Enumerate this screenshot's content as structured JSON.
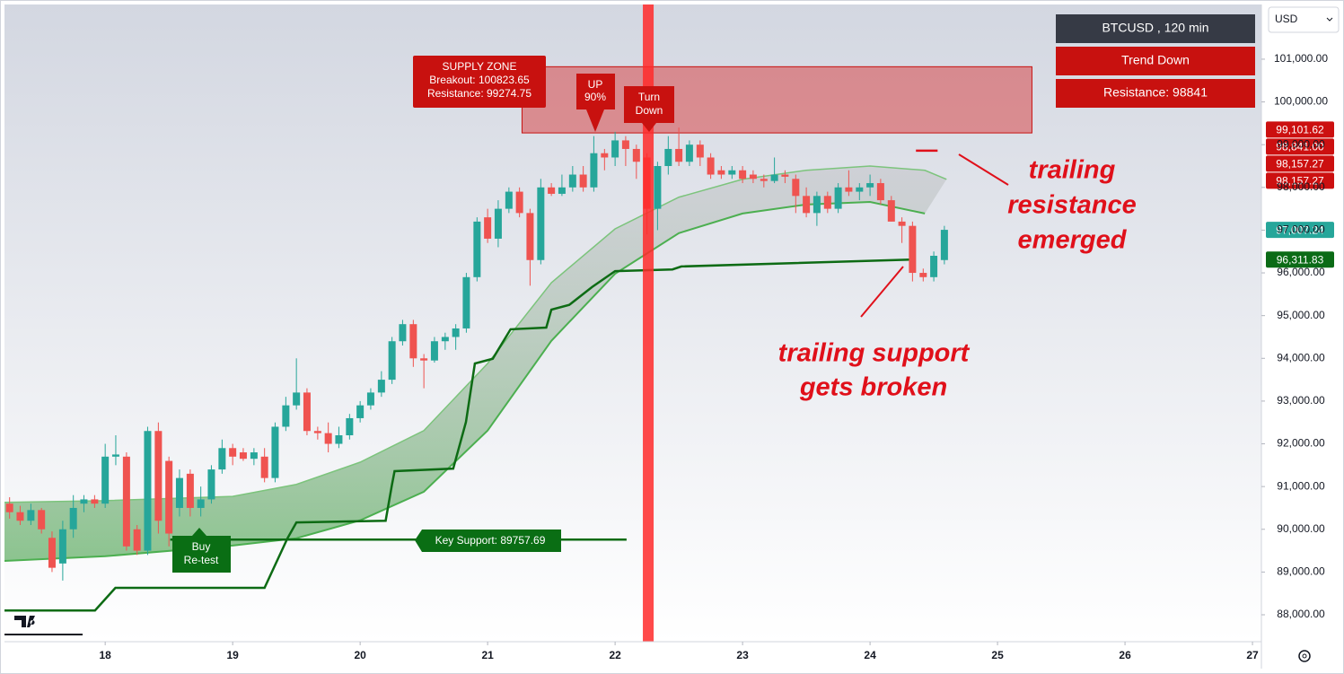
{
  "chart_data": {
    "type": "candlestick",
    "xlim": [
      17.21,
      27.07
    ],
    "xticks": [
      18,
      19,
      20,
      21,
      22,
      23,
      24,
      25,
      26,
      27
    ],
    "ylim": [
      87370,
      102280
    ],
    "yticks": [
      {
        "value": 88000,
        "label": "88,000.00"
      },
      {
        "value": 89000,
        "label": "89,000.00"
      },
      {
        "value": 90000,
        "label": "90,000.00"
      },
      {
        "value": 91000,
        "label": "91,000.00"
      },
      {
        "value": 92000,
        "label": "92,000.00"
      },
      {
        "value": 93000,
        "label": "93,000.00"
      },
      {
        "value": 94000,
        "label": "94,000.00"
      },
      {
        "value": 95000,
        "label": "95,000.00"
      },
      {
        "value": 96000,
        "label": "96,000.00"
      },
      {
        "value": 97000,
        "label": "97,000.00"
      },
      {
        "value": 98000,
        "label": "98,000.00"
      },
      {
        "value": 99000,
        "label": "99,000.00"
      },
      {
        "value": 100000,
        "label": "100,000.00"
      },
      {
        "value": 101000,
        "label": "101,000.00"
      }
    ],
    "up_color": "#26a69a",
    "down_color": "#ef5350",
    "x": [
      17.25,
      17.333,
      17.417,
      17.5,
      17.583,
      17.667,
      17.75,
      17.833,
      17.917,
      18,
      18.083,
      18.167,
      18.25,
      18.333,
      18.417,
      18.5,
      18.583,
      18.667,
      18.75,
      18.833,
      18.917,
      19,
      19.083,
      19.167,
      19.25,
      19.333,
      19.417,
      19.5,
      19.583,
      19.667,
      19.75,
      19.833,
      19.917,
      20,
      20.083,
      20.167,
      20.25,
      20.333,
      20.417,
      20.5,
      20.583,
      20.667,
      20.75,
      20.833,
      20.917,
      21,
      21.083,
      21.167,
      21.25,
      21.333,
      21.417,
      21.5,
      21.583,
      21.667,
      21.75,
      21.833,
      21.917,
      22,
      22.083,
      22.167,
      22.25,
      22.333,
      22.417,
      22.5,
      22.583,
      22.667,
      22.75,
      22.833,
      22.917,
      23,
      23.083,
      23.167,
      23.25,
      23.333,
      23.417,
      23.5,
      23.583,
      23.667,
      23.75,
      23.833,
      23.917,
      24,
      24.083,
      24.167,
      24.25,
      24.333,
      24.417,
      24.5,
      24.583
    ],
    "ohlc": [
      [
        90600,
        90750,
        90250,
        90400
      ],
      [
        90400,
        90550,
        90100,
        90200
      ],
      [
        90200,
        90600,
        90100,
        90450
      ],
      [
        90450,
        90500,
        89900,
        90000
      ],
      [
        89800,
        89950,
        89000,
        89100
      ],
      [
        89200,
        90200,
        88800,
        90000
      ],
      [
        90000,
        90800,
        89800,
        90500
      ],
      [
        90600,
        90800,
        90400,
        90700
      ],
      [
        90700,
        90800,
        90500,
        90600
      ],
      [
        90600,
        92000,
        90500,
        91700
      ],
      [
        91700,
        92200,
        91500,
        91750
      ],
      [
        91700,
        91800,
        89500,
        89600
      ],
      [
        90000,
        90100,
        89400,
        89500
      ],
      [
        89500,
        92400,
        89400,
        92300
      ],
      [
        92300,
        92500,
        89900,
        90200
      ],
      [
        91600,
        91700,
        89600,
        89900
      ],
      [
        90500,
        91400,
        90300,
        91200
      ],
      [
        91300,
        91400,
        90300,
        90500
      ],
      [
        90500,
        91000,
        90300,
        90700
      ],
      [
        90700,
        91500,
        90600,
        91400
      ],
      [
        91400,
        92100,
        91300,
        91900
      ],
      [
        91900,
        92000,
        91500,
        91700
      ],
      [
        91800,
        91900,
        91600,
        91650
      ],
      [
        91650,
        91900,
        91500,
        91800
      ],
      [
        91700,
        91900,
        91100,
        91200
      ],
      [
        91200,
        92500,
        91100,
        92400
      ],
      [
        92400,
        93100,
        92300,
        92900
      ],
      [
        92900,
        94000,
        92800,
        93200
      ],
      [
        93200,
        93300,
        92200,
        92300
      ],
      [
        92300,
        92400,
        92100,
        92250
      ],
      [
        92250,
        92500,
        91800,
        92000
      ],
      [
        92000,
        92400,
        91900,
        92200
      ],
      [
        92200,
        92700,
        92100,
        92600
      ],
      [
        92600,
        93000,
        92500,
        92900
      ],
      [
        92900,
        93300,
        92800,
        93200
      ],
      [
        93200,
        93700,
        93100,
        93500
      ],
      [
        93500,
        94500,
        93400,
        94400
      ],
      [
        94400,
        94900,
        94300,
        94800
      ],
      [
        94800,
        94900,
        93800,
        94000
      ],
      [
        94000,
        94100,
        93300,
        93950
      ],
      [
        93950,
        94500,
        93900,
        94400
      ],
      [
        94400,
        94600,
        94200,
        94500
      ],
      [
        94500,
        94800,
        94200,
        94700
      ],
      [
        94700,
        96000,
        94600,
        95900
      ],
      [
        95900,
        97300,
        95800,
        97200
      ],
      [
        97300,
        97500,
        96700,
        96800
      ],
      [
        96800,
        97700,
        96600,
        97500
      ],
      [
        97500,
        98000,
        97400,
        97900
      ],
      [
        97900,
        98000,
        97300,
        97400
      ],
      [
        97400,
        97500,
        95700,
        96300
      ],
      [
        96300,
        98200,
        96200,
        98000
      ],
      [
        98000,
        98100,
        97800,
        97850
      ],
      [
        97850,
        98300,
        97800,
        98000
      ],
      [
        98000,
        98500,
        97900,
        98300
      ],
      [
        98300,
        98500,
        97900,
        98000
      ],
      [
        98000,
        99200,
        97900,
        98800
      ],
      [
        98800,
        98900,
        98400,
        98700
      ],
      [
        98700,
        99300,
        98500,
        99100
      ],
      [
        99100,
        99200,
        98500,
        98900
      ],
      [
        98900,
        99000,
        98200,
        98600
      ],
      [
        98700,
        98800,
        96900,
        97500
      ],
      [
        97500,
        98600,
        97000,
        98500
      ],
      [
        98500,
        99200,
        98300,
        98900
      ],
      [
        98900,
        99400,
        98500,
        98600
      ],
      [
        98600,
        99100,
        98500,
        99000
      ],
      [
        99000,
        99100,
        98500,
        98700
      ],
      [
        98700,
        98800,
        98200,
        98300
      ],
      [
        98400,
        98500,
        98200,
        98300
      ],
      [
        98300,
        98500,
        98200,
        98400
      ],
      [
        98400,
        98500,
        98100,
        98200
      ],
      [
        98300,
        98400,
        98100,
        98200
      ],
      [
        98200,
        98300,
        98000,
        98150
      ],
      [
        98150,
        98700,
        98100,
        98300
      ],
      [
        98300,
        98400,
        98100,
        98250
      ],
      [
        98200,
        98300,
        97400,
        97800
      ],
      [
        97800,
        98000,
        97300,
        97400
      ],
      [
        97400,
        97900,
        97100,
        97800
      ],
      [
        97800,
        97900,
        97400,
        97500
      ],
      [
        97500,
        98100,
        97400,
        98000
      ],
      [
        98000,
        98400,
        97800,
        97900
      ],
      [
        97900,
        98100,
        97700,
        98000
      ],
      [
        98000,
        98300,
        97800,
        98100
      ],
      [
        98100,
        98200,
        97600,
        97700
      ],
      [
        97700,
        97800,
        97200,
        97200
      ],
      [
        97200,
        97300,
        96700,
        97100
      ],
      [
        97100,
        97200,
        95800,
        96000
      ],
      [
        96000,
        96100,
        95800,
        95900
      ],
      [
        95900,
        96500,
        95800,
        96400
      ],
      [
        96300,
        97100,
        96200,
        97007.24
      ]
    ],
    "trend_band": {
      "x": [
        17.21,
        18,
        19,
        19.5,
        20,
        20.5,
        21,
        21.5,
        22,
        22.5,
        23,
        23.5,
        24,
        24.43,
        24.6
      ],
      "upper": [
        90630,
        90670,
        90770,
        91050,
        91570,
        92310,
        93880,
        95770,
        97030,
        97770,
        98190,
        98400,
        98500,
        98400,
        98190
      ],
      "lower": [
        89260,
        89370,
        89620,
        89790,
        90210,
        90880,
        92310,
        94410,
        95980,
        96930,
        97390,
        97600,
        97660,
        97390,
        null
      ]
    },
    "trailing_support": {
      "x": [
        17.21,
        17.92,
        18.08,
        19.25,
        19.43,
        19.5,
        20.2,
        20.25,
        20.27,
        20.73,
        20.83,
        20.9,
        21.04,
        21.18,
        21.46,
        21.5,
        21.64,
        21.82,
        22,
        22.45,
        22.52,
        24.32
      ],
      "values": [
        88100,
        88100,
        88630,
        88630,
        89790,
        90160,
        90200,
        91050,
        91360,
        91420,
        92510,
        93880,
        93990,
        94680,
        94720,
        95140,
        95250,
        95670,
        96040,
        96080,
        96150,
        96311.83
      ]
    },
    "key_support": {
      "value": 89757.69,
      "x": [
        18.51,
        22.09
      ],
      "label": "Key Support: 89757.69"
    },
    "supply_zone": {
      "top": 100823.65,
      "bottom": 99274.75,
      "x": [
        21.27,
        25.27
      ],
      "label": [
        "SUPPLY ZONE",
        "Breakout: 100823.65",
        "Resistance: 99274.75"
      ]
    },
    "trailing_resistance": {
      "x": [
        24.36,
        24.53
      ],
      "values": [
        98860,
        98860
      ]
    },
    "vertical_marker": {
      "x": 22.26,
      "color": "#ff2a2a"
    },
    "signals": [
      {
        "label": [
          "UP",
          "90%"
        ]
      },
      {
        "label": [
          "Turn",
          "Down"
        ]
      },
      {
        "label": [
          "Buy",
          "Re-test"
        ]
      }
    ],
    "price_labels": [
      {
        "value": 99101.62,
        "label": "99,101.62",
        "color": "#cc1010"
      },
      {
        "value": 98841,
        "label": "98,841.00",
        "color": "#cc1010"
      },
      {
        "value": 98157.27,
        "label": "98,157.27",
        "color": "#cc1010"
      },
      {
        "value": 98157.27,
        "label": "98,157.27",
        "color": "#cc1010"
      },
      {
        "value": 97007.24,
        "label": "97,007.24",
        "color": "#26a69a"
      },
      {
        "value": 96311.83,
        "label": "96,311.83",
        "color": "#0b6b16"
      }
    ],
    "info_panel": [
      "BTCUSD , 120 min",
      "Trend Down",
      "Resistance: 98841"
    ],
    "currency": "USD",
    "notes": [
      [
        "trailing",
        "resistance",
        "emerged"
      ],
      [
        "trailing support",
        "gets broken"
      ]
    ]
  }
}
